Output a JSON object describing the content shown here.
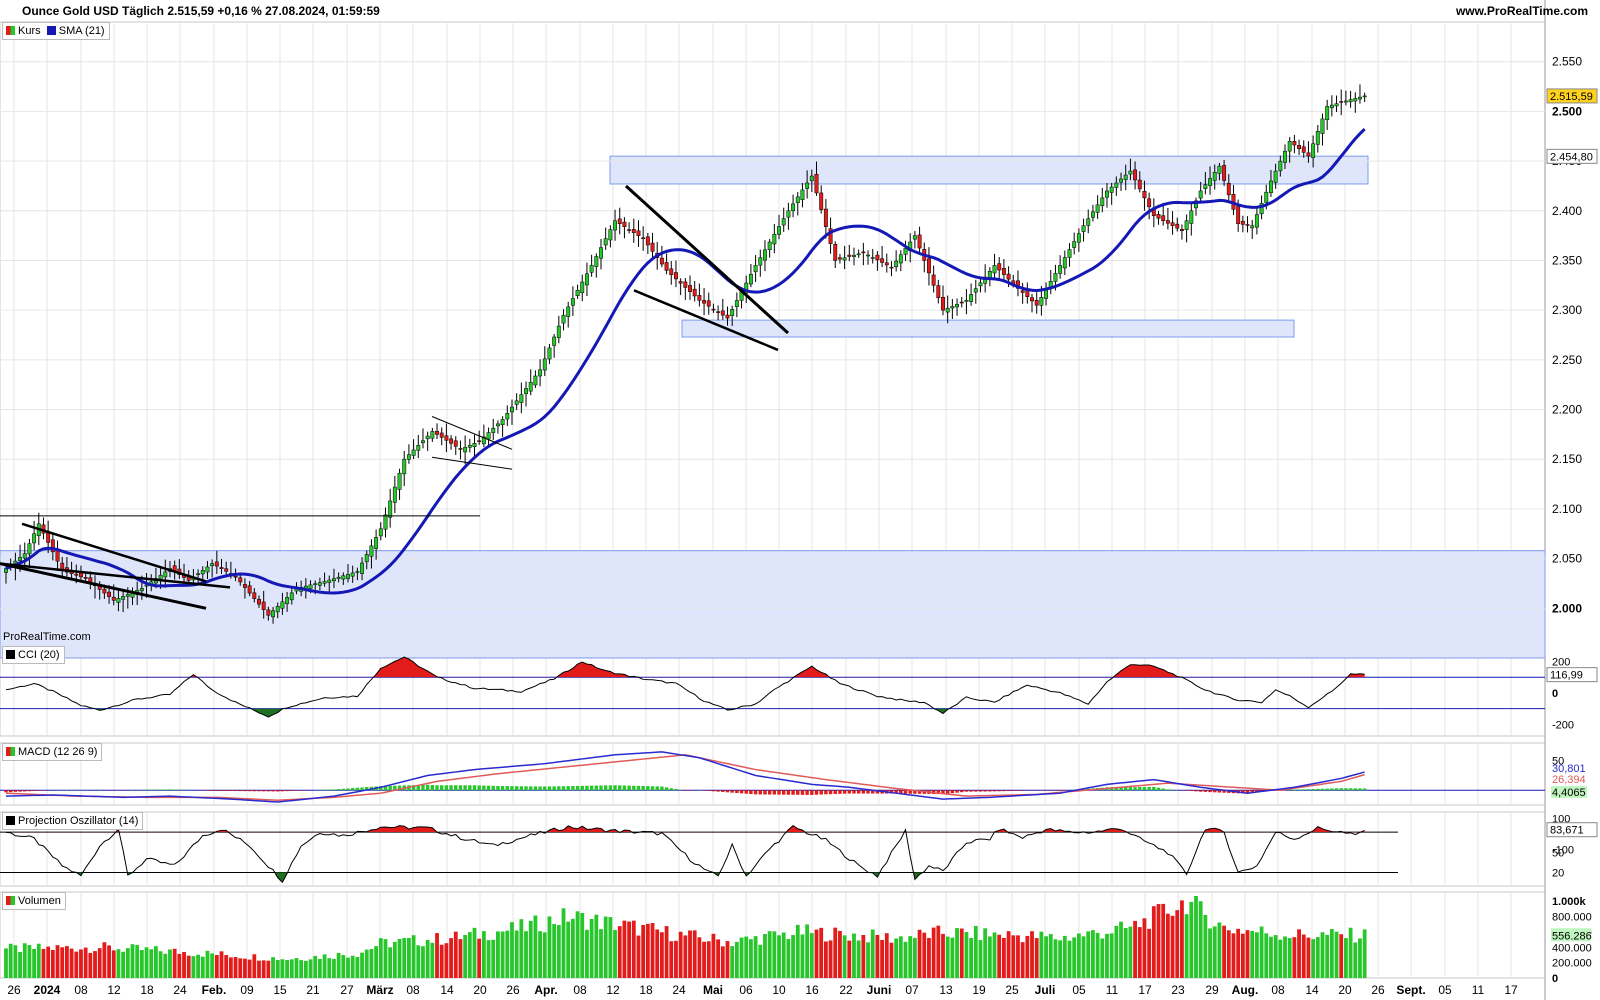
{
  "header": {
    "title": "Ounce Gold USD Täglich 2.515,59 +0,16 % 27.08.2024, 01:59:59",
    "site": "www.ProRealTime.com",
    "watermark": "ProRealTime.com"
  },
  "colors": {
    "up": "#27c62b",
    "down": "#e21b1b",
    "sma": "#1418b4",
    "grid": "#e6e6ea",
    "zone": "#dfe6fb",
    "zone_border": "#7f9ce8",
    "hist_up": "#27c62b",
    "hist_down": "#e21b1b"
  },
  "chart_data": [
    {
      "panel": "price",
      "type": "candlestick",
      "legend": [
        "Kurs",
        "SMA (21)"
      ],
      "y_ticks": [
        2000,
        2050,
        2100,
        2150,
        2200,
        2250,
        2300,
        2350,
        2400,
        2450,
        2500,
        2550
      ],
      "y_tick_labels": [
        "2.000",
        "2.050",
        "2.100",
        "2.150",
        "2.200",
        "2.250",
        "2.300",
        "2.350",
        "2.400",
        "2.450",
        "2.500",
        "2.550"
      ],
      "ylim": [
        1955,
        2590
      ],
      "last_price_label": "2.515,59",
      "sma_label": "2.454,80",
      "x_tick_labels": [
        "26",
        "2024",
        "08",
        "12",
        "18",
        "24",
        "Feb.",
        "09",
        "15",
        "21",
        "27",
        "März",
        "08",
        "14",
        "20",
        "26",
        "Apr.",
        "08",
        "12",
        "18",
        "24",
        "Mai",
        "06",
        "10",
        "16",
        "22",
        "Juni",
        "07",
        "13",
        "19",
        "25",
        "Juli",
        "05",
        "11",
        "17",
        "23",
        "29",
        "Aug.",
        "08",
        "14",
        "20",
        "26",
        "Sept.",
        "05",
        "11",
        "17"
      ],
      "anchors": [
        [
          0,
          2040
        ],
        [
          4,
          2055
        ],
        [
          7,
          2085
        ],
        [
          12,
          2038
        ],
        [
          17,
          2030
        ],
        [
          23,
          2008
        ],
        [
          29,
          2020
        ],
        [
          35,
          2040
        ],
        [
          39,
          2028
        ],
        [
          44,
          2045
        ],
        [
          49,
          2032
        ],
        [
          56,
          1993
        ],
        [
          62,
          2020
        ],
        [
          68,
          2027
        ],
        [
          75,
          2037
        ],
        [
          80,
          2080
        ],
        [
          85,
          2150
        ],
        [
          91,
          2178
        ],
        [
          97,
          2160
        ],
        [
          101,
          2168
        ],
        [
          106,
          2190
        ],
        [
          114,
          2240
        ],
        [
          119,
          2295
        ],
        [
          125,
          2345
        ],
        [
          130,
          2390
        ],
        [
          136,
          2372
        ],
        [
          141,
          2340
        ],
        [
          148,
          2310
        ],
        [
          154,
          2292
        ],
        [
          160,
          2345
        ],
        [
          167,
          2400
        ],
        [
          172,
          2435
        ],
        [
          177,
          2350
        ],
        [
          183,
          2358
        ],
        [
          189,
          2343
        ],
        [
          194,
          2375
        ],
        [
          200,
          2300
        ],
        [
          205,
          2310
        ],
        [
          211,
          2345
        ],
        [
          216,
          2322
        ],
        [
          220,
          2305
        ],
        [
          225,
          2345
        ],
        [
          230,
          2385
        ],
        [
          235,
          2420
        ],
        [
          240,
          2440
        ],
        [
          245,
          2395
        ],
        [
          251,
          2380
        ],
        [
          255,
          2420
        ],
        [
          259,
          2445
        ],
        [
          263,
          2387
        ],
        [
          266,
          2385
        ],
        [
          270,
          2430
        ],
        [
          274,
          2470
        ],
        [
          278,
          2455
        ],
        [
          282,
          2505
        ],
        [
          287,
          2512
        ],
        [
          290,
          2515.59
        ]
      ]
    },
    {
      "panel": "cci",
      "name": "CCI (20)",
      "type": "oscillator",
      "y_ticks": [
        200,
        0,
        -200
      ],
      "ref_lines": [
        100,
        -100
      ],
      "value_label": "116,99",
      "anchors": [
        [
          0,
          20
        ],
        [
          6,
          60
        ],
        [
          10,
          10
        ],
        [
          16,
          -80
        ],
        [
          20,
          -110
        ],
        [
          28,
          -40
        ],
        [
          35,
          -10
        ],
        [
          40,
          120
        ],
        [
          44,
          20
        ],
        [
          49,
          -60
        ],
        [
          56,
          -150
        ],
        [
          60,
          -90
        ],
        [
          68,
          -30
        ],
        [
          75,
          -20
        ],
        [
          80,
          160
        ],
        [
          85,
          230
        ],
        [
          92,
          100
        ],
        [
          100,
          30
        ],
        [
          110,
          10
        ],
        [
          117,
          90
        ],
        [
          123,
          200
        ],
        [
          128,
          140
        ],
        [
          136,
          90
        ],
        [
          143,
          60
        ],
        [
          149,
          -50
        ],
        [
          154,
          -110
        ],
        [
          160,
          -70
        ],
        [
          164,
          20
        ],
        [
          172,
          170
        ],
        [
          178,
          60
        ],
        [
          186,
          -20
        ],
        [
          192,
          -50
        ],
        [
          196,
          -60
        ],
        [
          200,
          -130
        ],
        [
          205,
          -30
        ],
        [
          211,
          -60
        ],
        [
          214,
          -10
        ],
        [
          218,
          50
        ],
        [
          225,
          0
        ],
        [
          231,
          -70
        ],
        [
          235,
          70
        ],
        [
          240,
          185
        ],
        [
          245,
          170
        ],
        [
          250,
          110
        ],
        [
          256,
          20
        ],
        [
          262,
          -40
        ],
        [
          268,
          -60
        ],
        [
          271,
          20
        ],
        [
          274,
          -20
        ],
        [
          278,
          -90
        ],
        [
          283,
          10
        ],
        [
          287,
          120
        ],
        [
          290,
          117
        ]
      ]
    },
    {
      "panel": "macd",
      "name": "MACD (12 26 9)",
      "type": "macd",
      "y_ticks": [
        50,
        0,
        -100
      ],
      "macd_label": "30,801",
      "signal_label": "26,394",
      "hist_label": "4,4065",
      "macd_anchors": [
        [
          0,
          -10
        ],
        [
          10,
          -8
        ],
        [
          25,
          -12
        ],
        [
          35,
          -10
        ],
        [
          48,
          -15
        ],
        [
          58,
          -20
        ],
        [
          70,
          -10
        ],
        [
          80,
          5
        ],
        [
          90,
          25
        ],
        [
          100,
          35
        ],
        [
          115,
          45
        ],
        [
          130,
          60
        ],
        [
          140,
          65
        ],
        [
          148,
          55
        ],
        [
          160,
          25
        ],
        [
          172,
          10
        ],
        [
          180,
          5
        ],
        [
          190,
          -5
        ],
        [
          200,
          -15
        ],
        [
          210,
          -12
        ],
        [
          225,
          -5
        ],
        [
          235,
          10
        ],
        [
          245,
          18
        ],
        [
          255,
          5
        ],
        [
          265,
          -5
        ],
        [
          275,
          5
        ],
        [
          285,
          20
        ],
        [
          290,
          30.8
        ]
      ],
      "signal_anchors": [
        [
          0,
          -5
        ],
        [
          15,
          -10
        ],
        [
          30,
          -12
        ],
        [
          45,
          -12
        ],
        [
          58,
          -17
        ],
        [
          70,
          -12
        ],
        [
          80,
          -5
        ],
        [
          92,
          15
        ],
        [
          105,
          28
        ],
        [
          120,
          40
        ],
        [
          135,
          52
        ],
        [
          145,
          60
        ],
        [
          160,
          35
        ],
        [
          175,
          18
        ],
        [
          190,
          3
        ],
        [
          205,
          -10
        ],
        [
          220,
          -7
        ],
        [
          235,
          3
        ],
        [
          248,
          12
        ],
        [
          260,
          6
        ],
        [
          272,
          0
        ],
        [
          285,
          15
        ],
        [
          290,
          26.4
        ]
      ]
    },
    {
      "panel": "projection",
      "name": "Projection Oszillator (14)",
      "type": "oscillator",
      "y_ticks": [
        100,
        80,
        50,
        20
      ],
      "ref_lines": [
        80,
        20
      ],
      "value_label": "83,671",
      "anchors": [
        [
          0,
          80
        ],
        [
          6,
          70
        ],
        [
          12,
          30
        ],
        [
          16,
          15
        ],
        [
          20,
          60
        ],
        [
          24,
          85
        ],
        [
          26,
          15
        ],
        [
          30,
          40
        ],
        [
          36,
          30
        ],
        [
          42,
          75
        ],
        [
          46,
          85
        ],
        [
          52,
          60
        ],
        [
          56,
          30
        ],
        [
          59,
          8
        ],
        [
          63,
          60
        ],
        [
          67,
          80
        ],
        [
          72,
          75
        ],
        [
          80,
          88
        ],
        [
          90,
          86
        ],
        [
          98,
          70
        ],
        [
          104,
          60
        ],
        [
          112,
          75
        ],
        [
          120,
          88
        ],
        [
          130,
          82
        ],
        [
          140,
          78
        ],
        [
          146,
          40
        ],
        [
          150,
          20
        ],
        [
          152,
          15
        ],
        [
          155,
          60
        ],
        [
          158,
          15
        ],
        [
          163,
          55
        ],
        [
          168,
          88
        ],
        [
          175,
          68
        ],
        [
          182,
          30
        ],
        [
          186,
          15
        ],
        [
          192,
          82
        ],
        [
          194,
          10
        ],
        [
          197,
          30
        ],
        [
          200,
          22
        ],
        [
          205,
          65
        ],
        [
          210,
          70
        ],
        [
          212,
          85
        ],
        [
          217,
          72
        ],
        [
          222,
          84
        ],
        [
          227,
          80
        ],
        [
          232,
          80
        ],
        [
          238,
          86
        ],
        [
          242,
          70
        ],
        [
          248,
          50
        ],
        [
          252,
          18
        ],
        [
          256,
          86
        ],
        [
          260,
          80
        ],
        [
          263,
          20
        ],
        [
          267,
          30
        ],
        [
          271,
          80
        ],
        [
          275,
          70
        ],
        [
          280,
          86
        ],
        [
          285,
          80
        ],
        [
          288,
          75
        ],
        [
          290,
          83.7
        ]
      ]
    },
    {
      "panel": "volume",
      "name": "Volumen",
      "type": "bar",
      "y_ticks": [
        1000000,
        800000,
        600000,
        400000,
        200000,
        0
      ],
      "y_tick_labels": [
        "1.000k",
        "800.000",
        "600.000",
        "400.000",
        "200.000",
        "0"
      ],
      "value_label": "556.286",
      "anchors": [
        [
          0,
          380000
        ],
        [
          20,
          400000
        ],
        [
          40,
          330000
        ],
        [
          60,
          250000
        ],
        [
          75,
          320000
        ],
        [
          80,
          450000
        ],
        [
          95,
          520000
        ],
        [
          110,
          650000
        ],
        [
          120,
          800000
        ],
        [
          130,
          700000
        ],
        [
          145,
          550000
        ],
        [
          155,
          470000
        ],
        [
          170,
          600000
        ],
        [
          180,
          560000
        ],
        [
          190,
          520000
        ],
        [
          200,
          590000
        ],
        [
          215,
          560000
        ],
        [
          225,
          520000
        ],
        [
          240,
          650000
        ],
        [
          252,
          1000000
        ],
        [
          260,
          650000
        ],
        [
          275,
          560000
        ],
        [
          290,
          556286
        ]
      ]
    }
  ]
}
